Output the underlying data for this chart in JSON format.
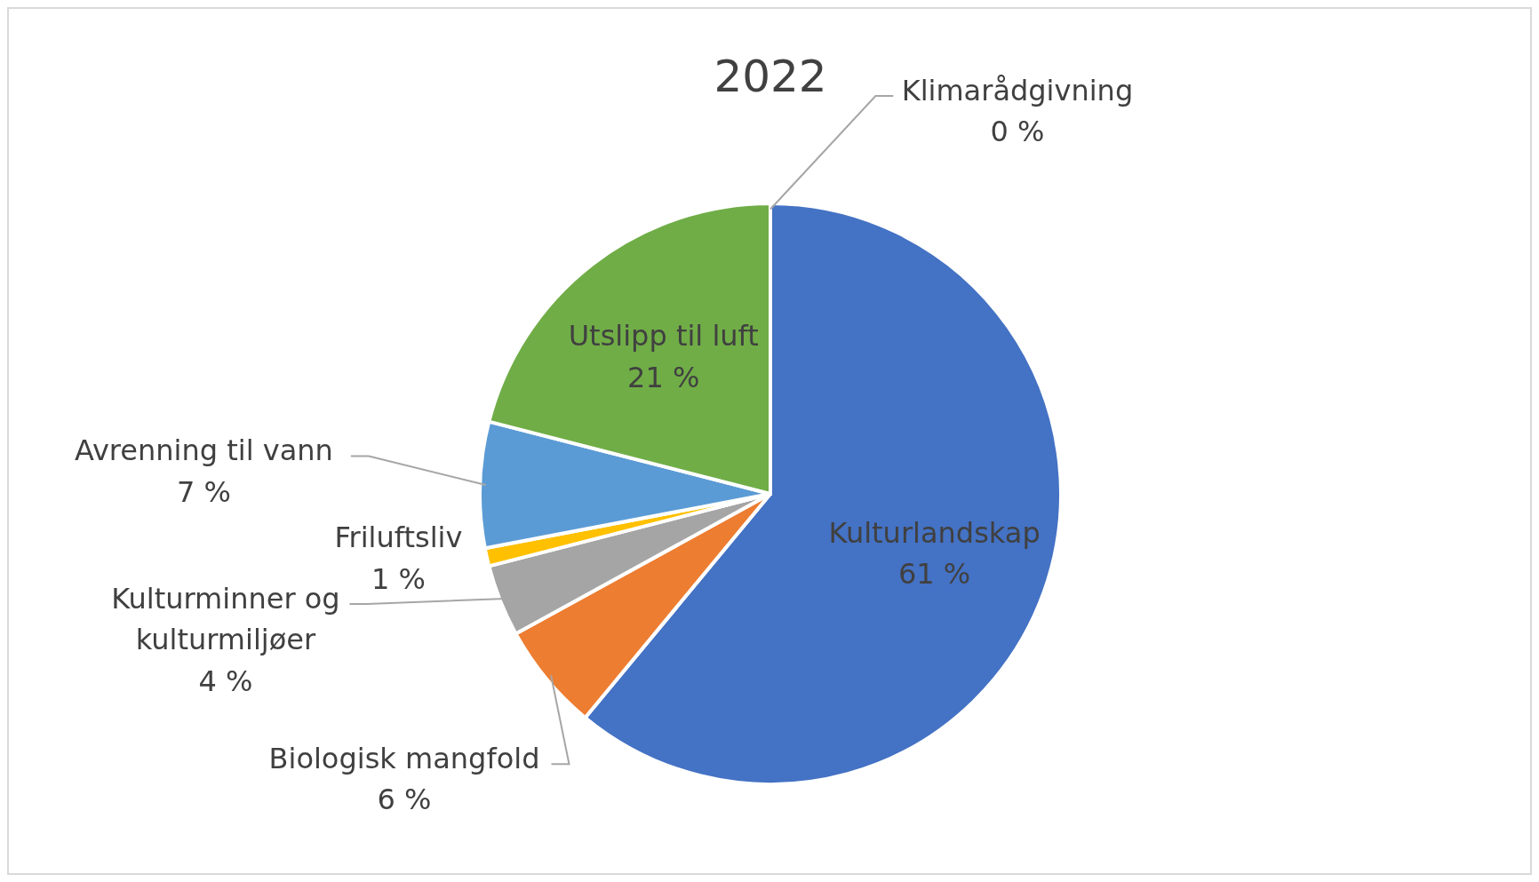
{
  "chart_data": {
    "type": "pie",
    "title": "2022",
    "categories": [
      "Kulturlandskap",
      "Biologisk mangfold",
      "Kulturminner og kulturmiljøer",
      "Friluftsliv",
      "Avrenning til vann",
      "Utslipp til luft",
      "Klimarådgivning"
    ],
    "values": [
      61,
      6,
      4,
      1,
      7,
      21,
      0
    ],
    "value_labels": [
      "61 %",
      "6 %",
      "4 %",
      "1 %",
      "7 %",
      "21 %",
      "0 %"
    ],
    "colors": [
      "#4472c4",
      "#ed7d31",
      "#a5a5a5",
      "#ffc000",
      "#5b9bd5",
      "#70ad47",
      "#264478"
    ]
  }
}
